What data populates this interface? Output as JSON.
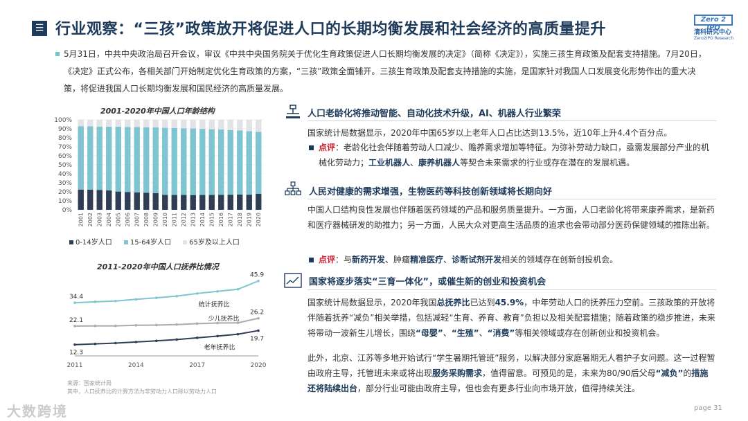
{
  "header": {
    "title": "行业观察：“三孩”政策放开将促进人口的长期均衡发展和社会经济的高质量提升",
    "logo_top": "Zero 2 IPO",
    "logo_cn": "清科研究中心",
    "logo_en": "Zero2IPO Research"
  },
  "intro": "5月31日，中共中央政治局召开会议，审议《中共中央国务院关于优化生育政策促进人口长期均衡发展的决定》（简称《决定》），实施三孩生育政策及配套支持措施。7月20日，《决定》正式公布，各相关部门开始制定优化生育政策的方案，“三孩”政策全面铺开。三孩生育政策及配套支持措施的实施，是国家针对我国人口发展变化形势作出的重大决策，将促进我国人口长期均衡发展和国民经济的高质量发展。",
  "chart_data": [
    {
      "type": "bar",
      "title": "2001-2020年中国人口年龄结构",
      "categories": [
        "2001",
        "2002",
        "2003",
        "2004",
        "2005",
        "2006",
        "2007",
        "2008",
        "2009",
        "2010",
        "2011",
        "2012",
        "2013",
        "2014",
        "2015",
        "2016",
        "2017",
        "2018",
        "2019",
        "2020"
      ],
      "yticks": [
        "0%",
        "10%",
        "20%",
        "30%",
        "40%",
        "50%",
        "60%",
        "70%",
        "80%",
        "90%",
        "100%"
      ],
      "ylim": [
        0,
        100
      ],
      "stacked": true,
      "series": [
        {
          "name": "0-14岁人口",
          "color": "#2f3e55",
          "values": [
            22.5,
            22.4,
            22.1,
            21.5,
            20.3,
            19.8,
            19.4,
            19.0,
            18.5,
            16.6,
            16.5,
            16.5,
            16.4,
            16.5,
            16.5,
            16.7,
            16.8,
            16.9,
            16.8,
            17.9
          ]
        },
        {
          "name": "15-64岁人口",
          "color": "#7ec4d1",
          "values": [
            70.4,
            70.3,
            70.4,
            70.9,
            72.0,
            72.3,
            72.5,
            72.7,
            73.0,
            74.5,
            74.4,
            74.1,
            73.9,
            73.4,
            73.0,
            72.5,
            71.8,
            71.2,
            70.6,
            68.6
          ]
        },
        {
          "name": "65岁及以上人口",
          "color": "#e1e3e6",
          "values": [
            7.1,
            7.3,
            7.5,
            7.6,
            7.7,
            7.9,
            8.1,
            8.3,
            8.5,
            8.9,
            9.1,
            9.4,
            9.7,
            10.1,
            10.5,
            10.8,
            11.4,
            11.9,
            12.6,
            13.5
          ]
        }
      ]
    },
    {
      "type": "line",
      "title": "2011-2020年中国人口抚养比情况",
      "x": [
        2011,
        2012,
        2013,
        2014,
        2015,
        2016,
        2017,
        2018,
        2019,
        2020
      ],
      "xticks": [
        "2011",
        "2014",
        "2017",
        "2020"
      ],
      "series": [
        {
          "name": "统计抚养比",
          "color": "#7ec4d1",
          "values": [
            34.4,
            34.9,
            35.3,
            36.2,
            37.0,
            37.9,
            39.3,
            40.4,
            41.5,
            45.9
          ]
        },
        {
          "name": "少儿抚养比",
          "color": "#a9abae",
          "values": [
            22.1,
            22.2,
            22.2,
            22.5,
            22.6,
            22.9,
            23.4,
            23.7,
            23.8,
            26.2
          ]
        },
        {
          "name": "老年抚养比",
          "color": "#2f3e55",
          "values": [
            12.3,
            12.7,
            13.1,
            13.7,
            14.3,
            15.0,
            15.9,
            16.8,
            17.8,
            19.7
          ]
        }
      ],
      "value_labels": {
        "start": [
          "34.4",
          "22.1",
          "12.3"
        ],
        "end": [
          "45.9",
          "26.2",
          "19.7"
        ]
      }
    }
  ],
  "legend1": [
    "0-14岁人口",
    "15-64岁人口",
    "65岁及以上人口"
  ],
  "source": {
    "line1": "来源：国家统计局",
    "line2": "其中，人口抚养比的计算方法为非劳动力人口除以劳动力人口"
  },
  "sections": [
    {
      "title": "人口老龄化将推动智能、自动化技术升级，AI、机器人行业繁荣",
      "para": "国家统计局数据显示，2020年中国65岁以上老年人口占比达到13.5%，近10年上升4.4个百分点。",
      "remark_label": "点评",
      "remark_a": "：老龄化社会伴随着劳动人口减少、赡养需求增加等特征。为弥补劳动力缺口，亟需发展部分产业的机械化劳动力；",
      "remark_b1": "工业机器人",
      "remark_sep": "、",
      "remark_b2": "康养机器人",
      "remark_c": "等契合未来需求的行业或存在潜在的发展机遇。"
    },
    {
      "title": "人民对健康的需求增强，生物医药等科技创新领域将长期向好",
      "para": "中国人口结构良性发展也伴随着医药领域的产品和服务质量提升。一方面，人口老龄化将带来康养需求，是新药和医疗器械研发的助推力；另一方面，人民大众对更高生活品质的追求也会带动部分医药保健领域的推陈出新。",
      "remark_label": "点评",
      "remark_a": "：与",
      "remark_b1": "新药开发",
      "remark_mid1": "、肿瘤",
      "remark_b2": "精准医疗",
      "remark_mid2": "、",
      "remark_b3": "诊断试剂开发",
      "remark_c": "相关的领域存在创新创投机会。"
    },
    {
      "title": "国家将逐步落实“三育一体化”，或催生新的创业和投资机会",
      "p1_a": "国家统计局数据显示，2020年我国",
      "p1_b1": "总抚养比",
      "p1_c": "已达到",
      "p1_b2": "45.9%",
      "p1_d": "，中年劳动人口的抚养压力空前。三孩政策的开放将伴随着抚养“减负”相关举措，包括减轻“生育、养育、教育”负担以及相关配套措施；随着政策的稳步推进，未来将带动一波新生儿增长，围绕",
      "p1_b3": "“母婴”",
      "p1_e": "、",
      "p1_b4": "“生殖”",
      "p1_f": "、",
      "p1_b5": "“消费”",
      "p1_g": "等相关领域或存在创新创业和投资机会。",
      "p2_a": "此外，北京、江苏等多地开始试行“学生暑期托管班”服务，以解决部分家庭暑期无人看护子女问题。这一过程暂由政府主导，托管班未来或将出现",
      "p2_b1": "服务采购需求",
      "p2_c": "，值得留意。可预见的是，未来为80/90后父母",
      "p2_b2": "“减负”",
      "p2_d": "的",
      "p2_b3": "措施还将陆续出台",
      "p2_e": "，部分行业可能由政府主导，但也会有更多行业向市场开放，值得持续关注。"
    }
  ],
  "footer": {
    "logo_text": "大数跨境",
    "page": "page  31"
  }
}
